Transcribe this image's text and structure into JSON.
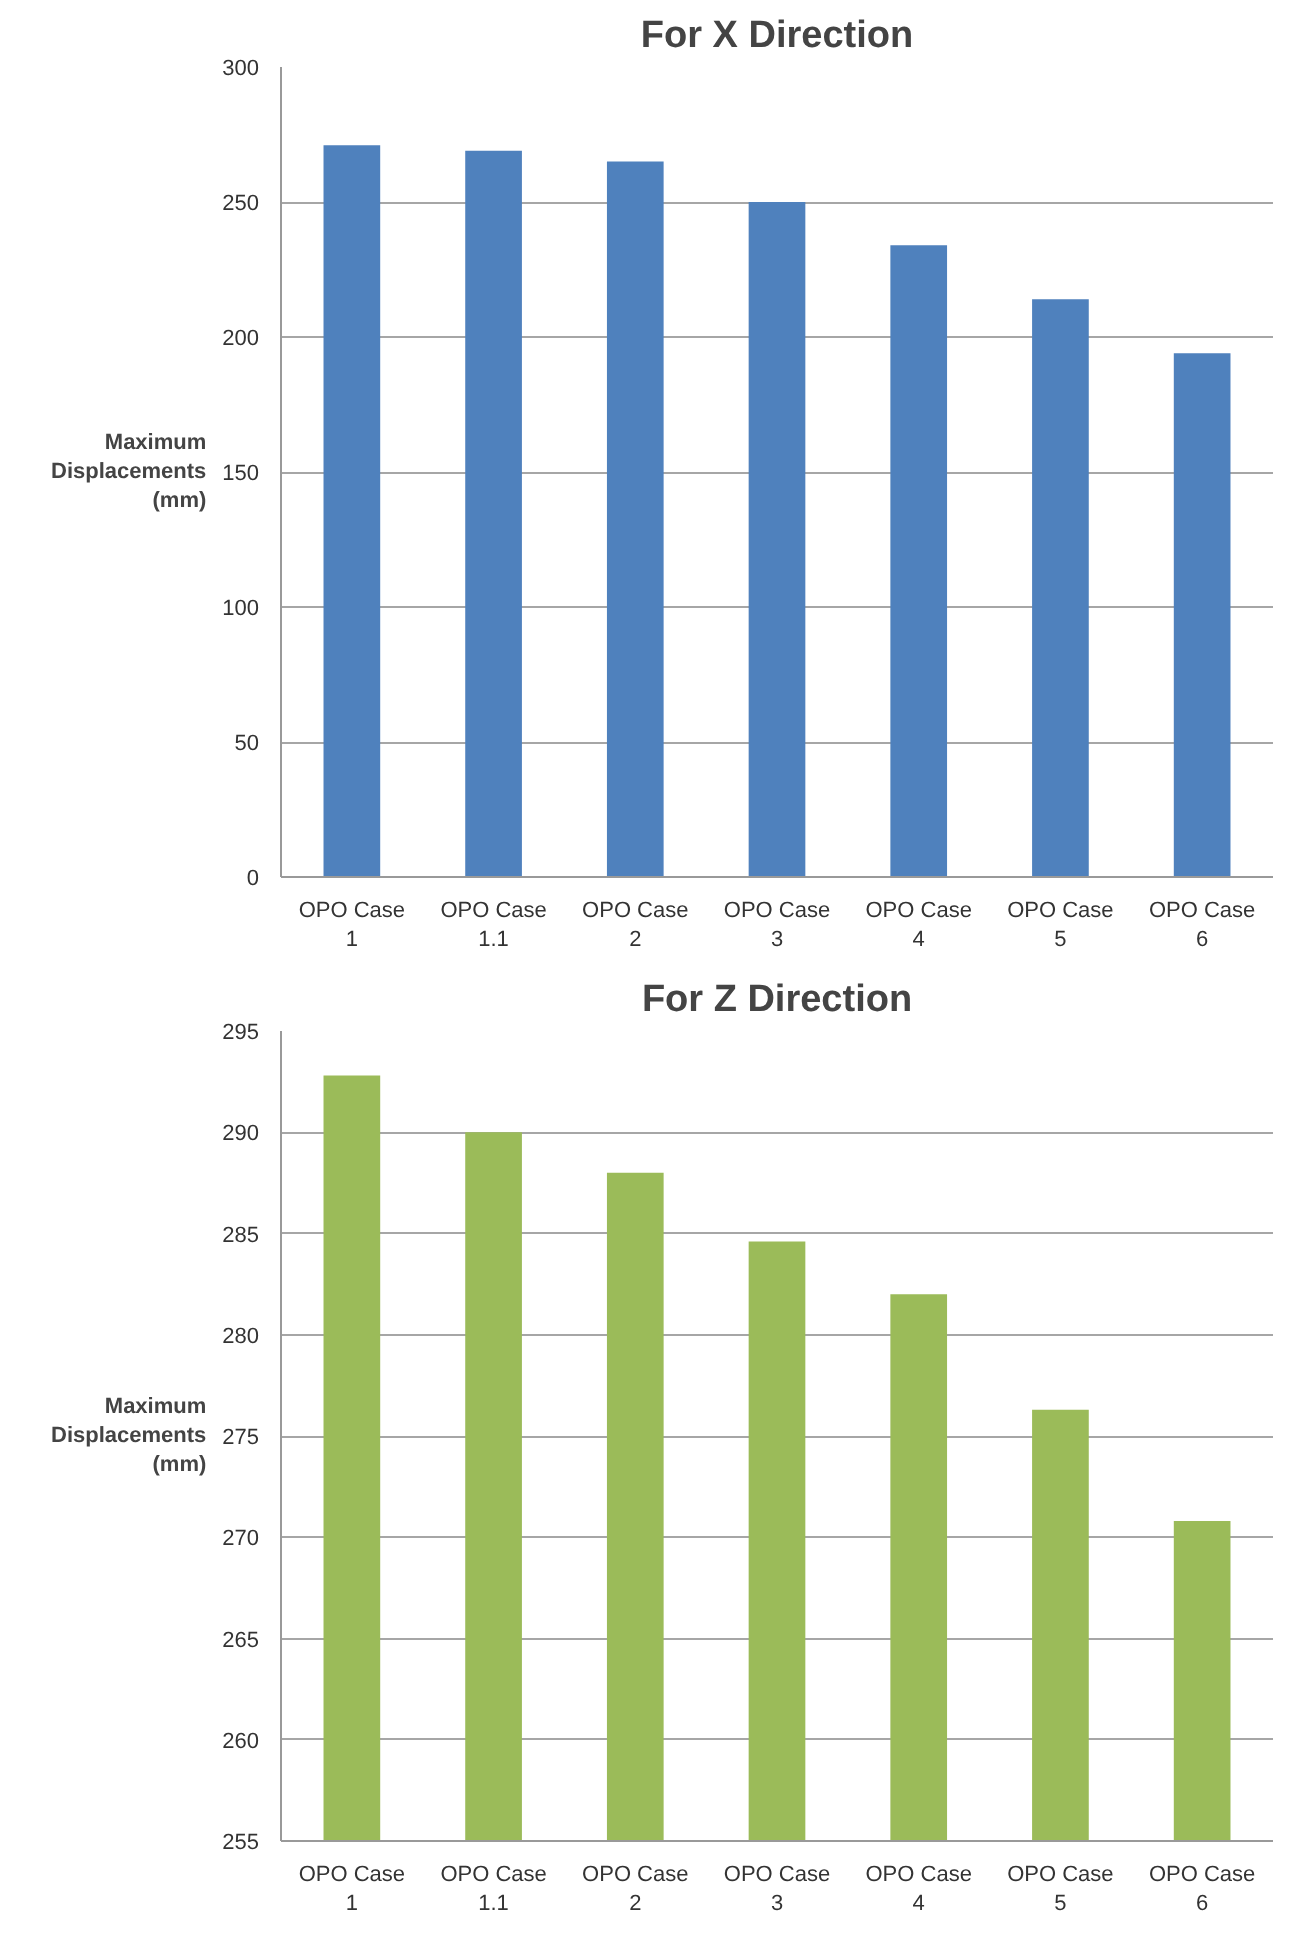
{
  "chart_data": [
    {
      "type": "bar",
      "title": "For X Direction",
      "ylabel": "Maximum Displacements (mm)",
      "categories": [
        "OPO Case 1",
        "OPO Case 1.1",
        "OPO Case 2",
        "OPO Case 3",
        "OPO Case 4",
        "OPO Case 5",
        "OPO Case 6"
      ],
      "values": [
        271,
        269,
        265,
        250,
        234,
        214,
        194
      ],
      "color": "#4f81bd",
      "ylim": [
        0,
        300
      ],
      "yticks": [
        0,
        50,
        100,
        150,
        200,
        250,
        300
      ],
      "grid": "y"
    },
    {
      "type": "bar",
      "title": "For Z Direction",
      "ylabel": "Maximum Displacements (mm)",
      "categories": [
        "OPO Case 1",
        "OPO Case 1.1",
        "OPO Case 2",
        "OPO Case 3",
        "OPO Case 4",
        "OPO Case 5",
        "OPO Case 6"
      ],
      "values": [
        292.8,
        290,
        288,
        284.6,
        282,
        276.3,
        270.8
      ],
      "color": "#9bbb59",
      "ylim": [
        255,
        295
      ],
      "yticks": [
        255,
        260,
        265,
        270,
        275,
        280,
        285,
        290,
        295
      ],
      "grid": "y"
    }
  ]
}
